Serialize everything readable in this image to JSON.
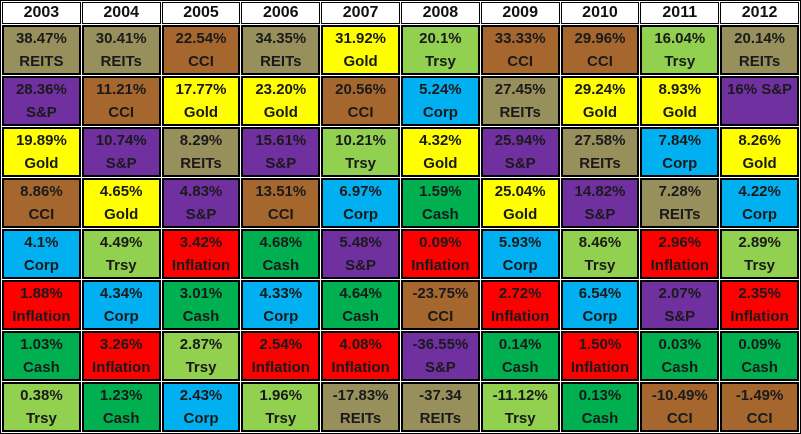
{
  "colors": {
    "REITS": "#97905C",
    "REITs": "#97905C",
    "CCI": "#A6672F",
    "Gold": "#FFFF00",
    "S&P": "#7030A0",
    "Corp": "#00B0F0",
    "Cash": "#00B050",
    "Trsy": "#92D050",
    "Inflation": "#FF0000",
    "header_bg": "#FFFFFF",
    "grid_border": "#000000",
    "text": "#1A1A1A"
  },
  "chart_data": {
    "type": "table",
    "description": "Ranked annual asset class returns by year (best to worst, top to bottom)",
    "columns": [
      "2003",
      "2004",
      "2005",
      "2006",
      "2007",
      "2008",
      "2009",
      "2010",
      "2011",
      "2012"
    ],
    "rows": [
      [
        {
          "v": "38.47%",
          "a": "REITS"
        },
        {
          "v": "30.41%",
          "a": "REITs"
        },
        {
          "v": "22.54%",
          "a": "CCI"
        },
        {
          "v": "34.35%",
          "a": "REITs"
        },
        {
          "v": "31.92%",
          "a": "Gold"
        },
        {
          "v": "20.1%",
          "a": "Trsy"
        },
        {
          "v": "33.33%",
          "a": "CCI"
        },
        {
          "v": "29.96%",
          "a": "CCI"
        },
        {
          "v": "16.04%",
          "a": "Trsy"
        },
        {
          "v": "20.14%",
          "a": "REITs"
        }
      ],
      [
        {
          "v": "28.36%",
          "a": "S&P"
        },
        {
          "v": "11.21%",
          "a": "CCI"
        },
        {
          "v": "17.77%",
          "a": "Gold"
        },
        {
          "v": "23.20%",
          "a": "Gold"
        },
        {
          "v": "20.56%",
          "a": "CCI"
        },
        {
          "v": "5.24%",
          "a": "Corp"
        },
        {
          "v": "27.45%",
          "a": "REITs"
        },
        {
          "v": "29.24%",
          "a": "Gold"
        },
        {
          "v": "8.93%",
          "a": "Gold"
        },
        {
          "v": "16% S&P",
          "a": "S&P",
          "single": true
        }
      ],
      [
        {
          "v": "19.89%",
          "a": "Gold"
        },
        {
          "v": "10.74%",
          "a": "S&P"
        },
        {
          "v": "8.29%",
          "a": "REITs"
        },
        {
          "v": "15.61%",
          "a": "S&P"
        },
        {
          "v": "10.21%",
          "a": "Trsy"
        },
        {
          "v": "4.32%",
          "a": "Gold"
        },
        {
          "v": "25.94%",
          "a": "S&P"
        },
        {
          "v": "27.58%",
          "a": "REITs"
        },
        {
          "v": "7.84%",
          "a": "Corp"
        },
        {
          "v": "8.26%",
          "a": "Gold"
        }
      ],
      [
        {
          "v": "8.86%",
          "a": "CCI"
        },
        {
          "v": "4.65%",
          "a": "Gold"
        },
        {
          "v": "4.83%",
          "a": "S&P"
        },
        {
          "v": "13.51%",
          "a": "CCI"
        },
        {
          "v": "6.97%",
          "a": "Corp"
        },
        {
          "v": "1.59%",
          "a": "Cash"
        },
        {
          "v": "25.04%",
          "a": "Gold"
        },
        {
          "v": "14.82%",
          "a": "S&P"
        },
        {
          "v": "7.28%",
          "a": "REITs"
        },
        {
          "v": "4.22%",
          "a": "Corp"
        }
      ],
      [
        {
          "v": "4.1%",
          "a": "Corp"
        },
        {
          "v": "4.49%",
          "a": "Trsy"
        },
        {
          "v": "3.42%",
          "a": "Inflation"
        },
        {
          "v": "4.68%",
          "a": "Cash"
        },
        {
          "v": "5.48%",
          "a": "S&P"
        },
        {
          "v": "0.09%",
          "a": "Inflation"
        },
        {
          "v": "5.93%",
          "a": "Corp"
        },
        {
          "v": "8.46%",
          "a": "Trsy"
        },
        {
          "v": "2.96%",
          "a": "Inflation"
        },
        {
          "v": "2.89%",
          "a": "Trsy"
        }
      ],
      [
        {
          "v": "1.88%",
          "a": "Inflation"
        },
        {
          "v": "4.34%",
          "a": "Corp"
        },
        {
          "v": "3.01%",
          "a": "Cash"
        },
        {
          "v": "4.33%",
          "a": "Corp"
        },
        {
          "v": "4.64%",
          "a": "Cash"
        },
        {
          "v": "-23.75%",
          "a": "CCI"
        },
        {
          "v": "2.72%",
          "a": "Inflation"
        },
        {
          "v": "6.54%",
          "a": "Corp"
        },
        {
          "v": "2.07%",
          "a": "S&P"
        },
        {
          "v": "2.35%",
          "a": "Inflation"
        }
      ],
      [
        {
          "v": "1.03%",
          "a": "Cash"
        },
        {
          "v": "3.26%",
          "a": "Inflation"
        },
        {
          "v": "2.87%",
          "a": "Trsy"
        },
        {
          "v": "2.54%",
          "a": "Inflation"
        },
        {
          "v": "4.08%",
          "a": "Inflation"
        },
        {
          "v": "-36.55%",
          "a": "S&P"
        },
        {
          "v": "0.14%",
          "a": "Cash"
        },
        {
          "v": "1.50%",
          "a": "Inflation"
        },
        {
          "v": "0.03%",
          "a": "Cash"
        },
        {
          "v": "0.09%",
          "a": "Cash"
        }
      ],
      [
        {
          "v": "0.38%",
          "a": "Trsy"
        },
        {
          "v": "1.23%",
          "a": "Cash"
        },
        {
          "v": "2.43%",
          "a": "Corp"
        },
        {
          "v": "1.96%",
          "a": "Trsy"
        },
        {
          "v": "-17.83%",
          "a": "REITs"
        },
        {
          "v": "-37.34",
          "a": "REITs"
        },
        {
          "v": "-11.12%",
          "a": "Trsy"
        },
        {
          "v": "0.13%",
          "a": "Cash"
        },
        {
          "v": "-10.49%",
          "a": "CCI"
        },
        {
          "v": "-1.49%",
          "a": "CCI"
        }
      ]
    ]
  }
}
